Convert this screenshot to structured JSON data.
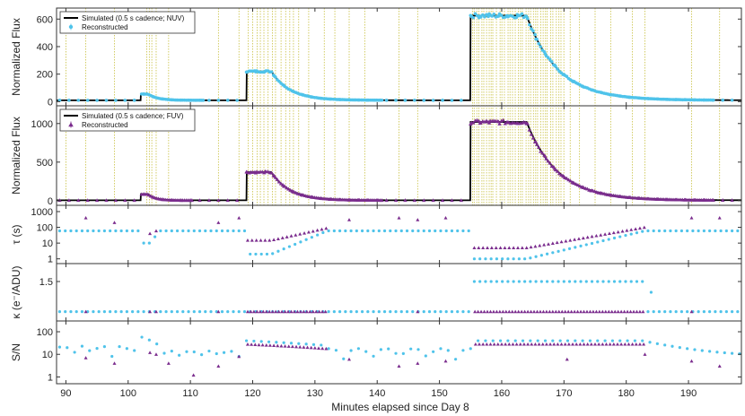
{
  "xlabel": "Minutes elapsed since Day 8",
  "xlim": [
    88.5,
    198.5
  ],
  "xticks": [
    90,
    100,
    110,
    120,
    130,
    140,
    150,
    160,
    170,
    180,
    190
  ],
  "colors": {
    "nuv": "#4fc3ea",
    "fuv": "#7b2d8e",
    "sim": "#000000",
    "flare_line": "#c8c040",
    "axis": "#333333"
  },
  "chart_data": [
    {
      "type": "line",
      "panel": "nuv-flux",
      "ylabel": "Normalized Flux",
      "ylim": [
        -30,
        680
      ],
      "yticks": [
        0,
        200,
        400,
        600
      ],
      "legend": [
        "Simulated (0.5 s cadence; NUV)",
        "Reconstructed"
      ],
      "legend_position": "top-left",
      "segments": [
        {
          "t0": 88.5,
          "t1": 102,
          "base": 10,
          "peak": 10,
          "decay": 1
        },
        {
          "t0": 102,
          "t1": 119,
          "base": 10,
          "peak": 55,
          "plateau": 1.2,
          "decay": 1.5
        },
        {
          "t0": 119,
          "t1": 155,
          "base": 10,
          "peak": 220,
          "plateau": 4,
          "decay": 3
        },
        {
          "t0": 155,
          "t1": 198.5,
          "base": 10,
          "peak": 625,
          "plateau": 9,
          "decay": 5
        }
      ]
    },
    {
      "type": "line",
      "panel": "fuv-flux",
      "ylabel": "Normalized Flux",
      "ylim": [
        -60,
        1230
      ],
      "yticks": [
        0,
        500,
        1000
      ],
      "legend": [
        "Simulated (0.5 s cadence; FUV)",
        "Reconstructed"
      ],
      "legend_position": "top-left",
      "segments": [
        {
          "t0": 88.5,
          "t1": 102,
          "base": 5,
          "peak": 5,
          "decay": 1
        },
        {
          "t0": 102,
          "t1": 119,
          "base": 5,
          "peak": 85,
          "plateau": 1.2,
          "decay": 1.2
        },
        {
          "t0": 119,
          "t1": 155,
          "base": 5,
          "peak": 370,
          "plateau": 4,
          "decay": 3
        },
        {
          "t0": 155,
          "t1": 198.5,
          "base": 5,
          "peak": 1020,
          "plateau": 9,
          "decay": 5
        }
      ]
    },
    {
      "type": "scatter",
      "panel": "tau",
      "ylabel": "τ (s)",
      "scale": "log",
      "ylim": [
        0.5,
        2500
      ],
      "yticks": [
        1,
        10,
        100,
        1000
      ],
      "ytick_labels": [
        "1",
        "10",
        "100",
        "1000"
      ]
    },
    {
      "type": "scatter",
      "panel": "kappa",
      "ylabel": "κ (e⁻/ADU)",
      "ylim": [
        0.95,
        1.75
      ],
      "yticks": [
        1.5
      ]
    },
    {
      "type": "scatter",
      "panel": "snr",
      "ylabel": "S/N",
      "scale": "log",
      "ylim": [
        0.5,
        300
      ],
      "yticks": [
        1,
        10,
        100
      ],
      "ytick_labels": [
        "1",
        "10",
        "100"
      ]
    }
  ]
}
